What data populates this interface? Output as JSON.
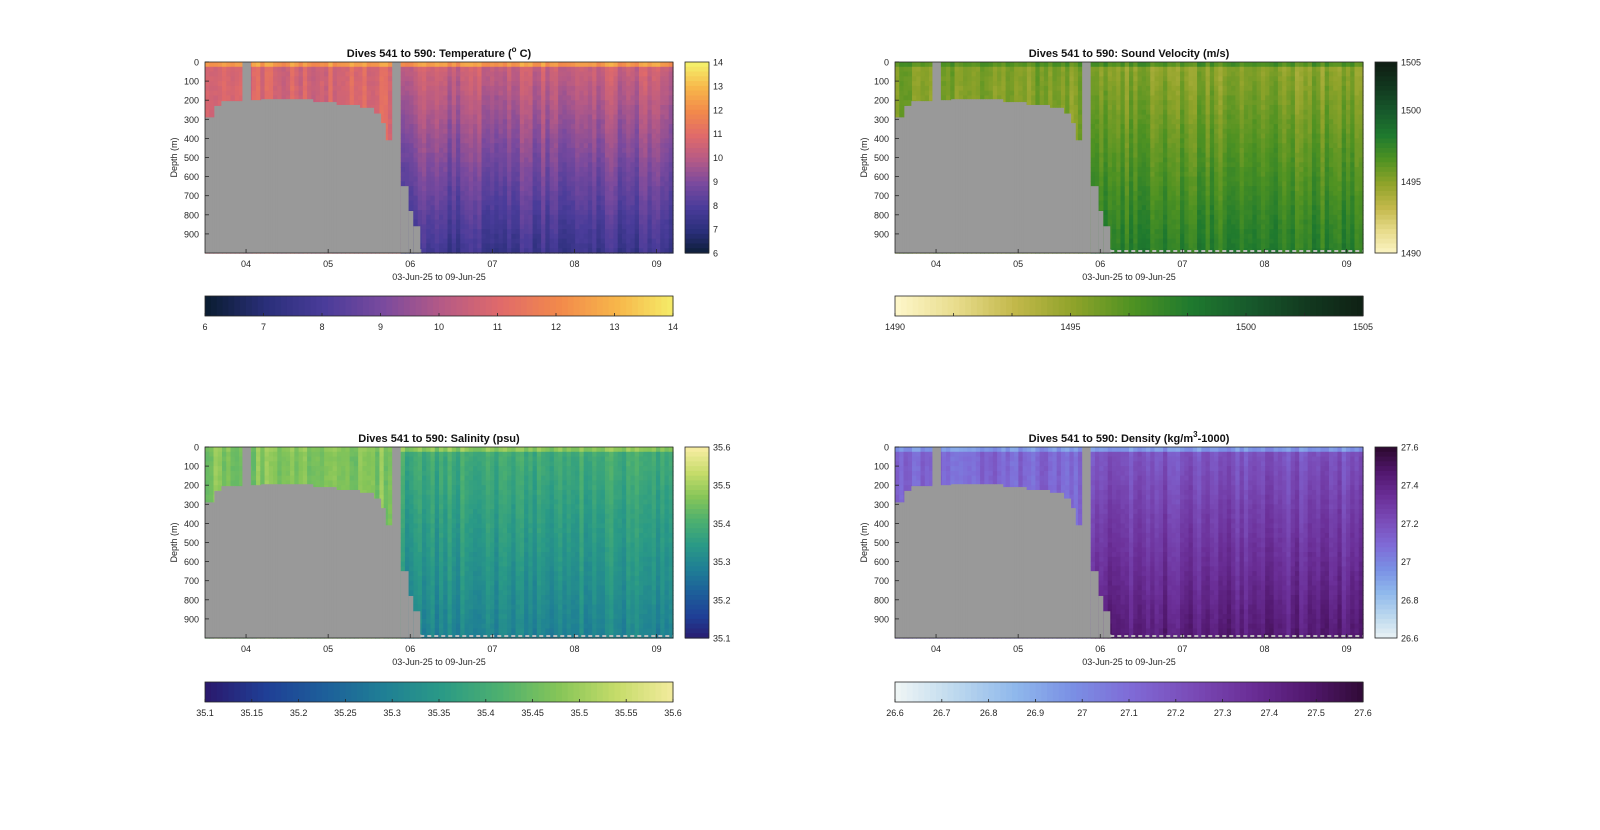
{
  "figure": {
    "x_axis_label": "03-Jun-25 to 09-Jun-25",
    "y_axis_label": "Depth (m)",
    "x_ticks": [
      "04",
      "05",
      "06",
      "07",
      "08",
      "09"
    ],
    "y_ticks": [
      "0",
      "100",
      "200",
      "300",
      "400",
      "500",
      "600",
      "700",
      "800",
      "900"
    ],
    "mask_color": "#999999"
  },
  "chart_data": [
    {
      "type": "heatmap",
      "title": "Dives 541 to 590: Temperature (",
      "title_sup": "o",
      "title_end": " C)",
      "xlabel": "03-Jun-25 to 09-Jun-25",
      "ylabel": "Depth (m)",
      "x_range_days": [
        3.5,
        9.2
      ],
      "ylim": [
        0,
        1000
      ],
      "y_reversed": true,
      "clim": [
        6,
        14
      ],
      "colormap": [
        "#0b1d33",
        "#2a2f7a",
        "#4a3c9a",
        "#7a4a9e",
        "#b55a86",
        "#e06a6a",
        "#f2894b",
        "#f7b64a",
        "#f5ef6a"
      ],
      "right_colorbar_ticks": [
        "6",
        "7",
        "8",
        "9",
        "10",
        "11",
        "12",
        "13",
        "14"
      ],
      "bottom_colorbar_ticks": [
        "6",
        "7",
        "8",
        "9",
        "10",
        "11",
        "12",
        "13",
        "14"
      ],
      "surface_value": 12.4,
      "shelf_value": 10.8,
      "deep_value_top": 10.6,
      "deep_value_bottom": 7.6,
      "bottom_line": false
    },
    {
      "type": "heatmap",
      "title": "Dives 541 to 590: Sound Velocity (m/s)",
      "title_sup": "",
      "title_end": "",
      "xlabel": "03-Jun-25 to 09-Jun-25",
      "ylabel": "Depth (m)",
      "x_range_days": [
        3.5,
        9.2
      ],
      "ylim": [
        0,
        1000
      ],
      "y_reversed": true,
      "clim": [
        1490,
        1505
      ],
      "colormap": [
        "#fdf6c8",
        "#e8dc8c",
        "#c2b84a",
        "#8fa32a",
        "#4f9222",
        "#1f7a2e",
        "#175a2c",
        "#12391f",
        "#0f1f14"
      ],
      "right_colorbar_ticks": [
        "1490",
        "",
        "",
        "1495",
        "",
        "",
        "1500",
        "",
        "1505"
      ],
      "bottom_colorbar_ticks": [
        "1490",
        "",
        "",
        "1495",
        "",
        "",
        "1500",
        "",
        "1505"
      ],
      "surface_value": 1497.5,
      "shelf_value": 1496.2,
      "deep_value_top": 1495.5,
      "deep_value_bottom": 1499.0,
      "bottom_line": true
    },
    {
      "type": "heatmap",
      "title": "Dives 541 to 590: Salinity (psu)",
      "title_sup": "",
      "title_end": "",
      "xlabel": "03-Jun-25 to 09-Jun-25",
      "ylabel": "Depth (m)",
      "x_range_days": [
        3.5,
        9.2
      ],
      "ylim": [
        0,
        1000
      ],
      "y_reversed": true,
      "clim": [
        35.1,
        35.6
      ],
      "colormap": [
        "#2a1a6e",
        "#1f3f96",
        "#1d5f9a",
        "#1f7f95",
        "#2a9a86",
        "#4db06f",
        "#86c558",
        "#c6dc6a",
        "#f5eca0"
      ],
      "right_colorbar_ticks": [
        "35.1",
        "35.2",
        "35.3",
        "35.4",
        "35.5",
        "35.6"
      ],
      "bottom_colorbar_ticks": [
        "35.1",
        "35.15",
        "35.2",
        "35.25",
        "35.3",
        "35.35",
        "35.4",
        "35.45",
        "35.5",
        "35.55",
        "35.6"
      ],
      "surface_value": 35.48,
      "shelf_value": 35.47,
      "deep_value_top": 35.4,
      "deep_value_bottom": 35.3,
      "bottom_line": true
    },
    {
      "type": "heatmap",
      "title": "Dives 541 to 590: Density (kg/m",
      "title_sup": "3",
      "title_end": "-1000)",
      "xlabel": "03-Jun-25 to 09-Jun-25",
      "ylabel": "Depth (m)",
      "x_range_days": [
        3.5,
        9.2
      ],
      "ylim": [
        0,
        1000
      ],
      "y_reversed": true,
      "clim": [
        26.6,
        27.6
      ],
      "colormap": [
        "#eef5f5",
        "#bcd8ee",
        "#8fb8ec",
        "#7a8fe4",
        "#7f6ad6",
        "#7a4cb8",
        "#6b2f98",
        "#52186f",
        "#2f0a33"
      ],
      "right_colorbar_ticks": [
        "26.6",
        "26.8",
        "27",
        "27.2",
        "27.4",
        "27.6"
      ],
      "bottom_colorbar_ticks": [
        "26.6",
        "26.7",
        "26.8",
        "26.9",
        "27",
        "27.1",
        "27.2",
        "27.3",
        "27.4",
        "27.5",
        "27.6"
      ],
      "surface_value": 26.95,
      "shelf_value": 27.12,
      "deep_value_top": 27.18,
      "deep_value_bottom": 27.45,
      "bottom_line": true
    }
  ]
}
